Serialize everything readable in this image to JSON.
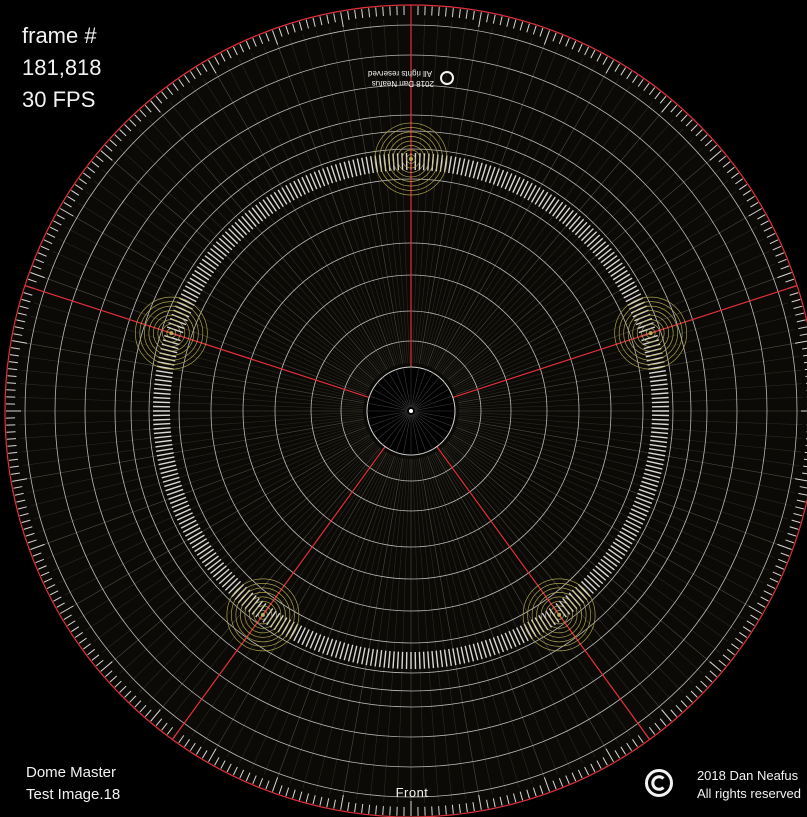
{
  "frame_info": {
    "label": "frame #",
    "frame_number": "181,818",
    "fps": "30 FPS"
  },
  "dome_title": {
    "line1": "Dome Master",
    "line2": "Test Image.18"
  },
  "copyright": {
    "line1": "2018 Dan Neafus",
    "line2": "All rights reserved"
  },
  "inner_copyright": {
    "line1": "2018 Dan Neafus",
    "line2": "All rights reserved"
  },
  "front_label": "Front",
  "colors": {
    "background": "#000000",
    "dome_fill": "#0c0a06",
    "ring": "#d8d8d8",
    "meridian": "#e0303a",
    "target_rings": "#b8ae52",
    "tick": "#eeeeee"
  },
  "icons": [
    "copyright-icon"
  ]
}
